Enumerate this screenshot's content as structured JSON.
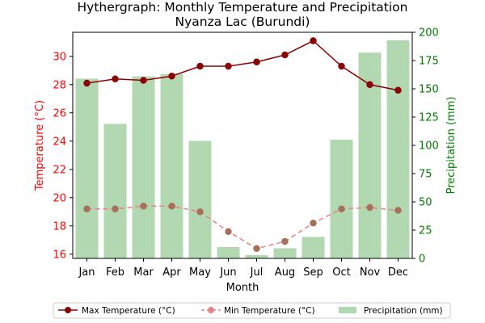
{
  "chart_data": {
    "type": "bar+line",
    "title": "Hythergraph: Monthly Temperature and Precipitation",
    "subtitle": "Nyanza Lac (Burundi)",
    "xlabel": "Month",
    "ylabel_left": "Temperature (°C)",
    "ylabel_right": "Precipitation (mm)",
    "categories": [
      "Jan",
      "Feb",
      "Mar",
      "Apr",
      "May",
      "Jun",
      "Jul",
      "Aug",
      "Sep",
      "Oct",
      "Nov",
      "Dec"
    ],
    "ylim_left": [
      15.7,
      31.7
    ],
    "yticks_left": [
      16,
      18,
      20,
      22,
      24,
      26,
      28,
      30
    ],
    "ylim_right": [
      0,
      200
    ],
    "yticks_right": [
      0,
      25,
      50,
      75,
      100,
      125,
      150,
      175,
      200
    ],
    "series": [
      {
        "name": "Max Temperature (°C)",
        "kind": "line",
        "axis": "left",
        "color": "#8b0000",
        "values": [
          28.1,
          28.4,
          28.3,
          28.6,
          29.3,
          29.3,
          29.6,
          30.1,
          31.1,
          29.3,
          28.0,
          27.6
        ]
      },
      {
        "name": "Min Temperature (°C)",
        "kind": "line",
        "axis": "left",
        "color": "#f08080",
        "values": [
          19.2,
          19.2,
          19.4,
          19.4,
          19.0,
          17.6,
          16.4,
          16.9,
          18.2,
          19.2,
          19.3,
          19.1
        ]
      },
      {
        "name": "Precipitation (mm)",
        "kind": "bar",
        "axis": "right",
        "color": "#b2d8b2",
        "values": [
          159,
          119,
          161,
          163,
          104,
          10,
          3,
          9,
          19,
          105,
          182,
          193
        ]
      }
    ],
    "legend_position": "bottom-center",
    "left_axis_color": "#ff0000",
    "right_axis_color": "#008000",
    "grid": false
  }
}
